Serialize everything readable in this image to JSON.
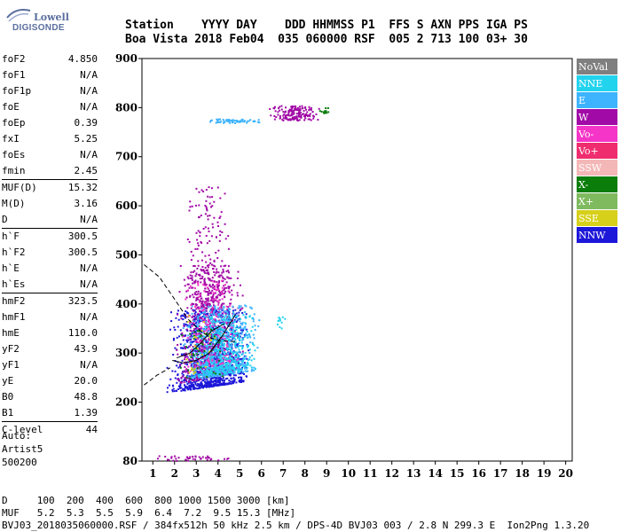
{
  "logo": {
    "line1": "Lowell",
    "line2": "DIGISONDE"
  },
  "header": {
    "row1": "Station    YYYY DAY    DDD HHMMSS P1  FFS S AXN PPS IGA PS",
    "row2": "Boa Vista 2018 Feb04  035 060000 RSF  005 2 713 100 03+ 30"
  },
  "params": [
    {
      "k": "foF2",
      "v": "4.850"
    },
    {
      "k": "foF1",
      "v": "N/A"
    },
    {
      "k": "foF1p",
      "v": "N/A"
    },
    {
      "k": "foE",
      "v": "N/A"
    },
    {
      "k": "foEp",
      "v": "0.39"
    },
    {
      "k": "fxI",
      "v": "5.25"
    },
    {
      "k": "foEs",
      "v": "N/A"
    },
    {
      "k": "fmin",
      "v": "2.45"
    },
    {
      "k": "MUF(D)",
      "v": "15.32",
      "sep": true
    },
    {
      "k": "M(D)",
      "v": "3.16"
    },
    {
      "k": "D",
      "v": "N/A"
    },
    {
      "k": "h`F",
      "v": "300.5",
      "sep": true
    },
    {
      "k": "h`F2",
      "v": "300.5"
    },
    {
      "k": "h`E",
      "v": "N/A"
    },
    {
      "k": "h`Es",
      "v": "N/A"
    },
    {
      "k": "hmF2",
      "v": "323.5",
      "sep": true
    },
    {
      "k": "hmF1",
      "v": "N/A"
    },
    {
      "k": "hmE",
      "v": "110.0"
    },
    {
      "k": "yF2",
      "v": "43.9"
    },
    {
      "k": "yF1",
      "v": "N/A"
    },
    {
      "k": "yE",
      "v": "20.0"
    },
    {
      "k": "B0",
      "v": "48.8"
    },
    {
      "k": "B1",
      "v": "1.39"
    },
    {
      "k": "C-level",
      "v": "44",
      "sep": true
    }
  ],
  "auto": {
    "line1": "Auto:",
    "line2": "Artist5",
    "line3": "500200"
  },
  "footer": {
    "d_row": "D     100  200  400  600  800 1000 1500 3000 [km]",
    "muf_row": "MUF   5.2  5.3  5.5  5.9  6.4  7.2  9.5 15.3 [MHz]",
    "info": "BVJ03_2018035060000.RSF / 384fx512h 50 kHz 2.5 km / DPS-4D BVJ03 003 / 2.8 N 299.3 E  Ion2Png 1.3.20"
  },
  "legend": [
    {
      "label": "NoVal",
      "color": "#7f7f7f"
    },
    {
      "label": "NNE",
      "color": "#22d3ee"
    },
    {
      "label": "E",
      "color": "#3eb4ff"
    },
    {
      "label": "W",
      "color": "#a10aa6"
    },
    {
      "label": "Vo-",
      "color": "#f535c7"
    },
    {
      "label": "Vo+",
      "color": "#ef2d6e"
    },
    {
      "label": "SSW",
      "color": "#f4b7b7"
    },
    {
      "label": "X-",
      "color": "#0a7d0a"
    },
    {
      "label": "X+",
      "color": "#7fba5f"
    },
    {
      "label": "SSE",
      "color": "#d7d01a"
    },
    {
      "label": "NNW",
      "color": "#1d17d9"
    }
  ],
  "chart_data": {
    "type": "scatter",
    "title": "",
    "xlabel": "",
    "ylabel": "",
    "xlim": [
      0.5,
      20.3
    ],
    "ylim": [
      80,
      900
    ],
    "xticks": [
      1,
      2,
      3,
      4,
      5,
      6,
      7,
      8,
      9,
      10,
      11,
      12,
      13,
      14,
      15,
      16,
      17,
      18,
      19,
      20
    ],
    "yticks": [
      80,
      200,
      300,
      400,
      500,
      600,
      700,
      800,
      900
    ],
    "grid": false,
    "legend_position": "right",
    "clusters": [
      {
        "name": "NNW",
        "x": [
          1.6,
          5.5
        ],
        "y": [
          220,
          390
        ],
        "count": 1100,
        "color": "#1d17d9"
      },
      {
        "name": "W",
        "x": [
          2.0,
          5.2
        ],
        "y": [
          235,
          480
        ],
        "count": 650,
        "color": "#a10aa6"
      },
      {
        "name": "E",
        "x": [
          2.3,
          6.0
        ],
        "y": [
          245,
          400
        ],
        "count": 550,
        "color": "#3eb4ff"
      },
      {
        "name": "NNE",
        "x": [
          2.5,
          5.8
        ],
        "y": [
          250,
          380
        ],
        "count": 400,
        "color": "#22d3ee"
      },
      {
        "name": "W",
        "x": [
          2.5,
          4.5
        ],
        "y": [
          380,
          640
        ],
        "count": 200,
        "color": "#a10aa6"
      },
      {
        "name": "Vo-",
        "x": [
          2.2,
          5.0
        ],
        "y": [
          260,
          450
        ],
        "count": 150,
        "color": "#f535c7"
      },
      {
        "name": "X-",
        "x": [
          2.0,
          4.5
        ],
        "y": [
          250,
          350
        ],
        "count": 40,
        "color": "#0a7d0a"
      },
      {
        "name": "SSE",
        "x": [
          2.0,
          4.0
        ],
        "y": [
          250,
          380
        ],
        "count": 30,
        "color": "#d7d01a"
      },
      {
        "name": "E",
        "x": [
          3.4,
          6.0
        ],
        "y": [
          770,
          778
        ],
        "count": 60,
        "color": "#3eb4ff"
      },
      {
        "name": "W",
        "x": [
          6.2,
          8.8
        ],
        "y": [
          775,
          805
        ],
        "count": 160,
        "color": "#a10aa6"
      },
      {
        "name": "X-",
        "x": [
          8.6,
          9.2
        ],
        "y": [
          790,
          802
        ],
        "count": 12,
        "color": "#0a7d0a"
      },
      {
        "name": "NNE",
        "x": [
          6.6,
          7.2
        ],
        "y": [
          350,
          375
        ],
        "count": 12,
        "color": "#22d3ee"
      },
      {
        "name": "W",
        "x": [
          1.0,
          5.0
        ],
        "y": [
          82,
          92
        ],
        "count": 40,
        "color": "#a10aa6"
      }
    ],
    "profile_curve": {
      "x": [
        0.6,
        1.3,
        2.0,
        2.6,
        3.2,
        3.7,
        4.2,
        4.85
      ],
      "y": [
        480,
        455,
        410,
        370,
        345,
        330,
        325,
        323.5
      ]
    },
    "trace_curves": [
      {
        "x": [
          1.9,
          2.4,
          3.0,
          3.6,
          4.2,
          4.8
        ],
        "y": [
          285,
          280,
          285,
          300,
          335,
          378
        ]
      },
      {
        "x": [
          2.1,
          2.7,
          3.2,
          3.7,
          4.3
        ],
        "y": [
          290,
          300,
          320,
          345,
          360
        ]
      }
    ],
    "ez_curve": {
      "x": [
        0.6,
        1.2,
        1.8
      ],
      "y": [
        235,
        255,
        270
      ]
    }
  }
}
